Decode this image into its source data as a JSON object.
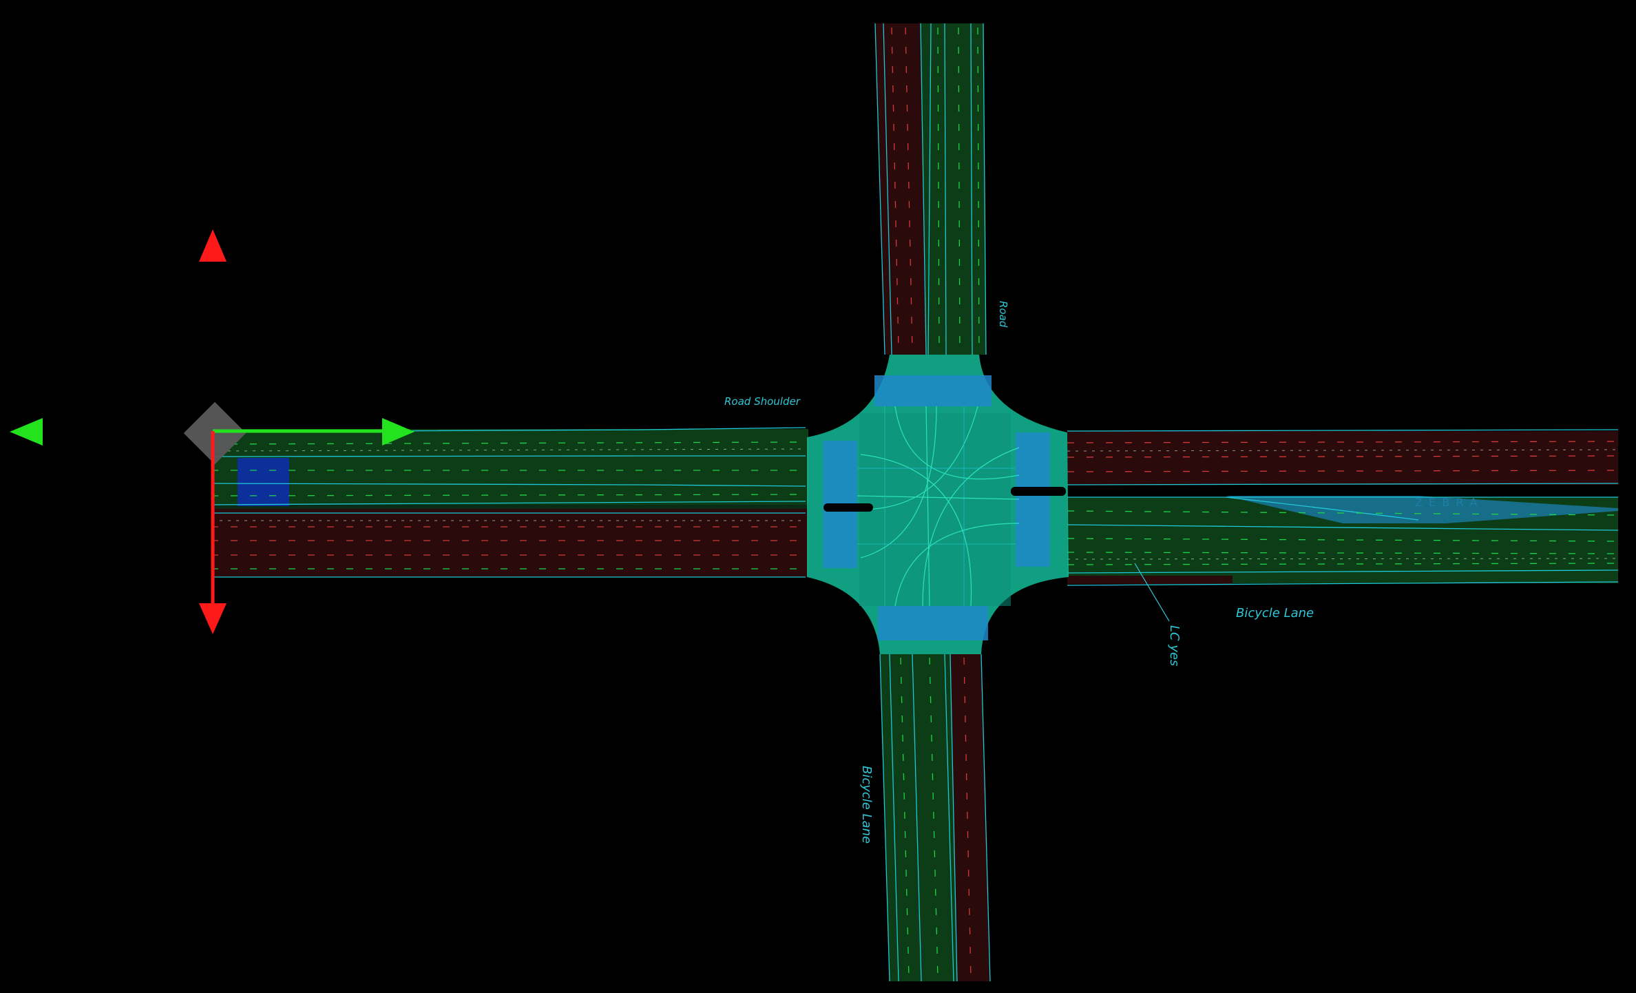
{
  "editor": {
    "background_color": "#000000",
    "gizmo": {
      "x_axis_color": "#22e31e",
      "y_axis_color": "#ff1a1a",
      "pivot_color": "#5a5a5a",
      "left_arrow_icon": "arrow-left-icon",
      "up_arrow_icon": "arrow-up-icon",
      "right_arrow_icon": "arrow-right-icon",
      "down_arrow_icon": "arrow-down-icon",
      "pivot_icon": "pivot-diamond-icon"
    }
  },
  "map": {
    "colors": {
      "lane_green": "#0c3d17",
      "lane_red": "#2a0a0a",
      "junction_fill": "#14c7a0",
      "crosswalk_blue": "#1e88c9",
      "outline_cyan": "#1ec8d8",
      "dash_green": "#20d24a",
      "dash_red": "#d23b3b",
      "selected_blue": "#0d2ea8",
      "zebra_blue": "#1a7fb0"
    },
    "labels": {
      "road": "Road",
      "road_shoulder": "Road Shoulder",
      "bicycle_lane_east": "Bicycle Lane",
      "bicycle_lane_south": "Bicycle Lane",
      "lc_yes": "LC yes",
      "zebra": "Z E B R A"
    }
  }
}
